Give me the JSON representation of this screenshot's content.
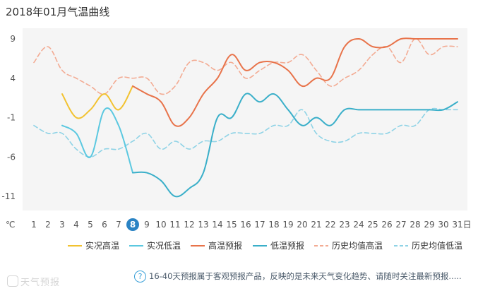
{
  "header": {
    "title": "2018年01月气温曲线"
  },
  "footer": {
    "help_glyph": "?",
    "note": "16-40天预报属于客观预报产品，反映的是未来天气变化趋势、请随时关注最新预报....."
  },
  "watermark": {
    "text": "天气预报"
  },
  "chart_data": {
    "type": "line",
    "y_ticks": [
      9,
      4,
      -1,
      -6,
      -11
    ],
    "ylim": [
      -13,
      10
    ],
    "y_unit": "℃",
    "x": [
      1,
      2,
      3,
      4,
      5,
      6,
      7,
      8,
      9,
      10,
      11,
      12,
      13,
      14,
      15,
      16,
      17,
      18,
      19,
      20,
      21,
      22,
      23,
      24,
      25,
      26,
      27,
      28,
      29,
      30,
      31
    ],
    "x_suffix": "日",
    "highlight_day": 8,
    "grid": false,
    "legend_position": "bottom-right",
    "series": [
      {
        "name": "实况高温",
        "color": "#f2c230",
        "dashed": false,
        "x": [
          3,
          4,
          5,
          6,
          7,
          8
        ],
        "values": [
          2,
          -1,
          0,
          2,
          0,
          3
        ]
      },
      {
        "name": "实况低温",
        "color": "#5bc8e0",
        "dashed": false,
        "x": [
          3,
          4,
          5,
          6,
          7,
          8
        ],
        "values": [
          -2,
          -3,
          -6,
          0,
          -2,
          -8
        ]
      },
      {
        "name": "高温预报",
        "color": "#e8734a",
        "dashed": false,
        "x": [
          8,
          9,
          10,
          11,
          12,
          13,
          14,
          15,
          16,
          17,
          18,
          19,
          20,
          21,
          22,
          23,
          24,
          25,
          26,
          27,
          28,
          29,
          30,
          31
        ],
        "values": [
          3,
          2,
          1,
          -2,
          -1,
          2,
          4,
          7,
          5,
          6,
          6,
          5,
          3,
          4,
          4,
          8,
          9,
          8,
          8,
          9,
          9,
          9,
          9,
          9
        ]
      },
      {
        "name": "低温预报",
        "color": "#3aafc9",
        "dashed": false,
        "x": [
          8,
          9,
          10,
          11,
          12,
          13,
          14,
          15,
          16,
          17,
          18,
          19,
          20,
          21,
          22,
          23,
          24,
          25,
          26,
          27,
          28,
          29,
          30,
          31
        ],
        "values": [
          -8,
          -8,
          -9,
          -11,
          -10,
          -8,
          -1,
          -1,
          2,
          1,
          2,
          0,
          -2,
          -1,
          -2,
          0,
          0,
          0,
          0,
          0,
          0,
          0,
          0,
          1
        ]
      },
      {
        "name": "历史均值高温",
        "color": "#f3ab93",
        "dashed": true,
        "x": [
          1,
          2,
          3,
          4,
          5,
          6,
          7,
          8,
          9,
          10,
          11,
          12,
          13,
          14,
          15,
          16,
          17,
          18,
          19,
          20,
          21,
          22,
          23,
          24,
          25,
          26,
          27,
          28,
          29,
          30,
          31
        ],
        "values": [
          6,
          8,
          5,
          4,
          3,
          2,
          4,
          4,
          4,
          2,
          3,
          6,
          6,
          5,
          6,
          4,
          5,
          6,
          6,
          7,
          5,
          3,
          4,
          5,
          7,
          8,
          6,
          9,
          7,
          8,
          8
        ]
      },
      {
        "name": "历史均值低温",
        "color": "#8fd3e6",
        "dashed": true,
        "x": [
          1,
          2,
          3,
          4,
          5,
          6,
          7,
          8,
          9,
          10,
          11,
          12,
          13,
          14,
          15,
          16,
          17,
          18,
          19,
          20,
          21,
          22,
          23,
          24,
          25,
          26,
          27,
          28,
          29,
          30,
          31
        ],
        "values": [
          -2,
          -3,
          -3,
          -5,
          -6,
          -5,
          -5,
          -4,
          -3,
          -5,
          -4,
          -5,
          -4,
          -4,
          -3,
          -3,
          -3,
          -2,
          -2,
          0,
          -3,
          -4,
          -4,
          -3,
          -3,
          -3,
          -2,
          -2,
          0,
          0,
          0
        ]
      }
    ]
  }
}
